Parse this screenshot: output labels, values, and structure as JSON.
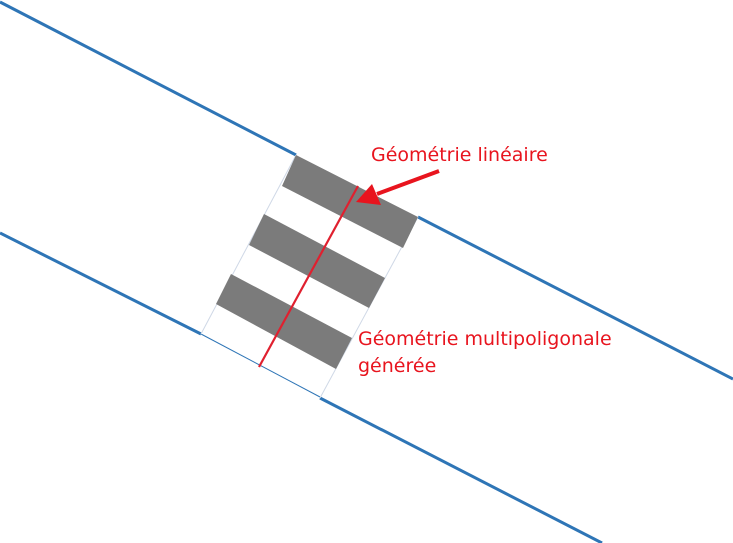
{
  "diagram": {
    "label_linear": "Géométrie linéaire",
    "label_multipolygon_line1": "Géométrie multipoligonale",
    "label_multipolygon_line2": "générée",
    "colors": {
      "road_edge": "#2e75b6",
      "stripe": "#7b7b7b",
      "centerline": "#e0202f",
      "annotation": "#e8141e",
      "crossing_outline": "#cfd8e6"
    }
  }
}
